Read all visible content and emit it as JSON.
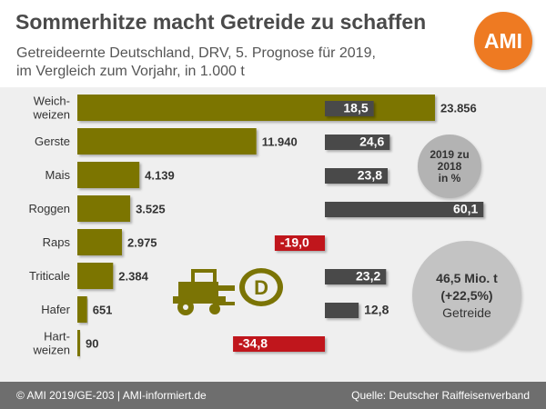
{
  "header": {
    "title": "Sommerhitze macht Getreide zu schaffen",
    "subtitle_line1": "Getreideernte Deutschland, DRV, 5. Prognose für 2019,",
    "subtitle_line2": "im Vergleich zum Vorjahr, in 1.000 t",
    "logo_text": "AMI"
  },
  "badges": {
    "change_label_line1": "2019 zu",
    "change_label_line2": "2018",
    "change_label_line3": "in %",
    "total_line1": "46,5 Mio. t",
    "total_line2": "(+22,5%)",
    "total_line3": "Getreide"
  },
  "footer": {
    "left": "© AMI 2019/GE-203 | AMI-informiert.de",
    "right": "Quelle: Deutscher Raiffeisenverband"
  },
  "colors": {
    "volume_bar": "#7b7405",
    "positive_change": "#4a4a4a",
    "negative_change": "#c0121a",
    "background": "#efefef",
    "logo": "#ee7a22"
  },
  "icons": [
    "combine-harvester-icon",
    "germany-d-badge-icon"
  ],
  "chart_data": [
    {
      "type": "bar",
      "orientation": "horizontal",
      "categories": [
        "Weich-\nweizen",
        "Gerste",
        "Mais",
        "Roggen",
        "Raps",
        "Triticale",
        "Hafer",
        "Hart-\nweizen"
      ],
      "values": [
        23856,
        11940,
        4139,
        3525,
        2975,
        2384,
        651,
        90
      ],
      "value_labels": [
        "23.856",
        "11.940",
        "4.139",
        "3.525",
        "2.975",
        "2.384",
        "651",
        "90"
      ]
    },
    {
      "type": "bar",
      "orientation": "horizontal",
      "categories": [
        "Weich-\nweizen",
        "Gerste",
        "Mais",
        "Roggen",
        "Raps",
        "Triticale",
        "Hafer",
        "Hart-\nweizen"
      ],
      "values": [
        18.5,
        24.6,
        23.8,
        60.1,
        -19.0,
        23.2,
        12.8,
        -34.8
      ],
      "value_labels": [
        "18,5",
        "24,6",
        "23,8",
        "60,1",
        "-19,0",
        "23,2",
        "12,8",
        "-34,8"
      ]
    }
  ]
}
